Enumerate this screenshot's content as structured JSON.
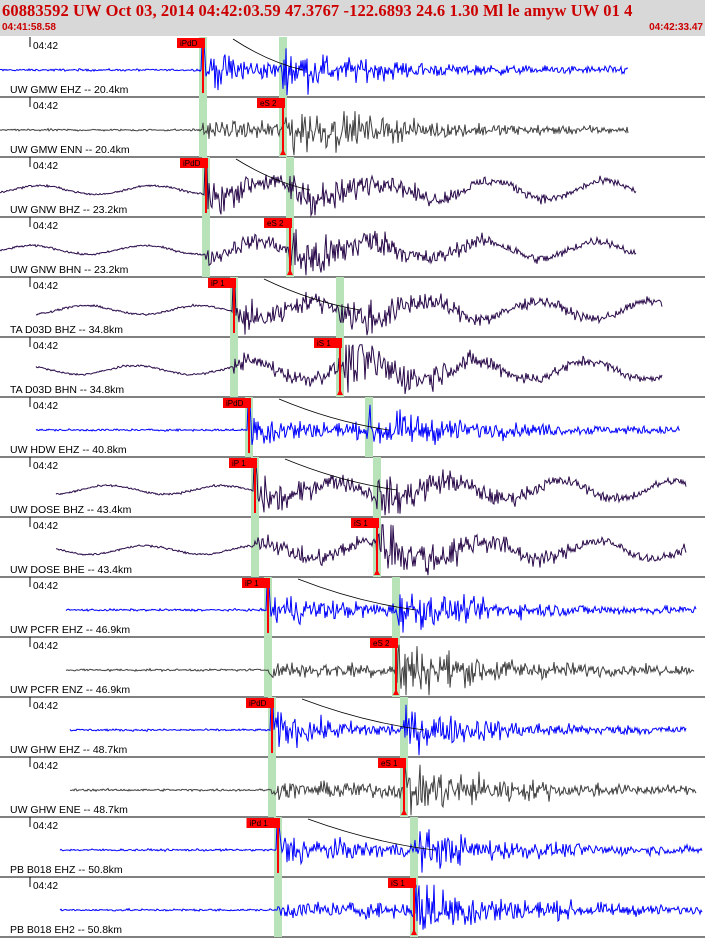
{
  "header": {
    "title": "60883592 UW Oct 03, 2014 04:42:03.59   47.3767 -122.6893 24.6 1.30 Ml le amyw UW 01    4",
    "time_start": "04:41:58.58",
    "time_end": "04:42:33.47"
  },
  "colors": {
    "header_bg": "#d8d8d8",
    "header_text": "#cc0000",
    "pick": "#ff0000",
    "pick_window": "#b8e2b8",
    "trace_blue": "#0000ff",
    "trace_gray": "#404040",
    "trace_purple": "#2a0a4a",
    "travel_curve": "#000000"
  },
  "traces": [
    {
      "label": "UW GMW EHZ -- 20.4km",
      "minute": "04:42",
      "color": "blue",
      "start": 0,
      "end": 628,
      "p": 203,
      "s": 283,
      "pick": "iPdD",
      "pick_type": "P"
    },
    {
      "label": "UW GMW ENN -- 20.4km",
      "minute": "04:42",
      "color": "gray",
      "start": 0,
      "end": 628,
      "p": 203,
      "s": 283,
      "pick": "eS 2",
      "pick_type": "S"
    },
    {
      "label": "UW GNW BHZ -- 23.2km",
      "minute": "04:42",
      "color": "purple",
      "start": 0,
      "end": 636,
      "p": 206,
      "s": 290,
      "pick": "iPdD",
      "pick_type": "P"
    },
    {
      "label": "UW GNW BHN -- 23.2km",
      "minute": "04:42",
      "color": "purple",
      "start": 0,
      "end": 636,
      "p": 206,
      "s": 290,
      "pick": "eS 2",
      "pick_type": "S"
    },
    {
      "label": "TA D03D BHZ -- 34.8km",
      "minute": "04:42",
      "color": "purple",
      "start": 36,
      "end": 662,
      "p": 234,
      "s": 340,
      "pick": "iP 1",
      "pick_type": "P"
    },
    {
      "label": "TA D03D BHN -- 34.8km",
      "minute": "04:42",
      "color": "purple",
      "start": 36,
      "end": 662,
      "p": 234,
      "s": 340,
      "pick": "iS 1",
      "pick_type": "S"
    },
    {
      "label": "UW HDW EHZ -- 40.8km",
      "minute": "04:42",
      "color": "blue",
      "start": 36,
      "end": 680,
      "p": 249,
      "s": 369,
      "pick": "iPdD",
      "pick_type": "P"
    },
    {
      "label": "UW DOSE BHZ -- 43.4km",
      "minute": "04:42",
      "color": "purple",
      "start": 56,
      "end": 686,
      "p": 255,
      "s": 377,
      "pick": "iP 1",
      "pick_type": "P"
    },
    {
      "label": "UW DOSE BHE -- 43.4km",
      "minute": "04:42",
      "color": "purple",
      "start": 56,
      "end": 686,
      "p": 255,
      "s": 377,
      "pick": "iS 1",
      "pick_type": "S"
    },
    {
      "label": "UW PCFR EHZ -- 46.9km",
      "minute": "04:42",
      "color": "blue",
      "start": 66,
      "end": 696,
      "p": 268,
      "s": 396,
      "pick": "iP 1",
      "pick_type": "P"
    },
    {
      "label": "UW PCFR ENZ -- 46.9km",
      "minute": "04:42",
      "color": "gray",
      "start": 66,
      "end": 694,
      "p": 268,
      "s": 396,
      "pick": "eS 2",
      "pick_type": "S"
    },
    {
      "label": "UW GHW EHZ -- 48.7km",
      "minute": "04:42",
      "color": "blue",
      "start": 70,
      "end": 686,
      "p": 272,
      "s": 404,
      "pick": "iPdD",
      "pick_type": "P"
    },
    {
      "label": "UW GHW ENE -- 48.7km",
      "minute": "04:42",
      "color": "gray",
      "start": 70,
      "end": 696,
      "p": 272,
      "s": 404,
      "pick": "eS 1",
      "pick_type": "S"
    },
    {
      "label": "PB B018 EHZ -- 50.8km",
      "minute": "04:42",
      "color": "blue",
      "start": 60,
      "end": 702,
      "p": 278,
      "s": 414,
      "pick": "iPd 1",
      "pick_type": "P"
    },
    {
      "label": "PB B018 EH2 -- 50.8km",
      "minute": "04:42",
      "color": "blue",
      "start": 60,
      "end": 702,
      "p": 278,
      "s": 414,
      "pick": "iS 1",
      "pick_type": "S"
    }
  ]
}
